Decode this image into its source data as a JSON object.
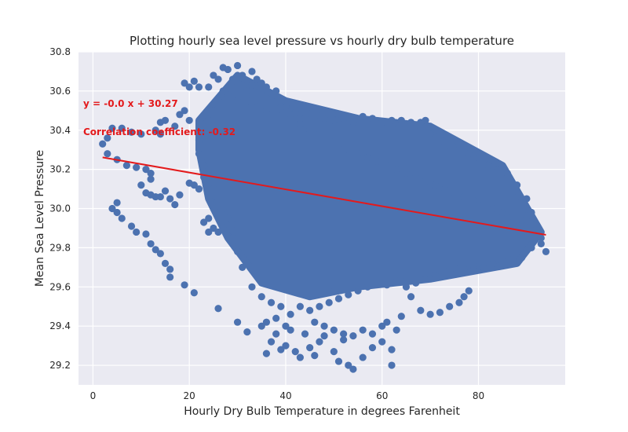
{
  "chart_data": {
    "type": "scatter",
    "title": "Plotting hourly sea level pressure vs hourly dry bulb temperature",
    "xlabel": "Hourly Dry Bulb Temperature in degrees Farenheit",
    "ylabel": "Mean Sea Level Pressure",
    "xlim": [
      -3,
      98
    ],
    "ylim": [
      29.1,
      30.8
    ],
    "xticks": [
      "0",
      "20",
      "40",
      "60",
      "80"
    ],
    "yticks": [
      "29.2",
      "29.4",
      "29.6",
      "29.8",
      "30.0",
      "30.2",
      "30.4",
      "30.6",
      "30.8"
    ],
    "grid": true,
    "background": "#EAEAF2",
    "point_color": "#4C72B0",
    "line_color": "#E31A1C",
    "annotations": {
      "equation": "y = -0.0 x + 30.27",
      "correlation": "Correlation coefficient: -0.32"
    },
    "regression": {
      "slope": -0.0043,
      "intercept": 30.27,
      "x_range": [
        2,
        94
      ]
    },
    "series": [
      {
        "points": [
          [
            2,
            30.33
          ],
          [
            3,
            30.36
          ],
          [
            3,
            30.28
          ],
          [
            4,
            30.41
          ],
          [
            5,
            30.25
          ],
          [
            6,
            30.41
          ],
          [
            7,
            30.22
          ],
          [
            8,
            30.39
          ],
          [
            9,
            30.21
          ],
          [
            10,
            30.38
          ],
          [
            11,
            30.2
          ],
          [
            12,
            30.18
          ],
          [
            13,
            30.4
          ],
          [
            14,
            30.38
          ],
          [
            4,
            30.0
          ],
          [
            5,
            29.98
          ],
          [
            6,
            29.95
          ],
          [
            5,
            30.03
          ],
          [
            8,
            29.91
          ],
          [
            9,
            29.88
          ],
          [
            11,
            29.87
          ],
          [
            12,
            29.82
          ],
          [
            13,
            29.79
          ],
          [
            14,
            29.77
          ],
          [
            15,
            29.72
          ],
          [
            16,
            29.69
          ],
          [
            16,
            29.65
          ],
          [
            19,
            29.61
          ],
          [
            21,
            29.57
          ],
          [
            26,
            29.49
          ],
          [
            10,
            30.12
          ],
          [
            11,
            30.08
          ],
          [
            12,
            30.07
          ],
          [
            13,
            30.06
          ],
          [
            14,
            30.06
          ],
          [
            15,
            30.09
          ],
          [
            16,
            30.05
          ],
          [
            17,
            30.02
          ],
          [
            18,
            30.07
          ],
          [
            12,
            30.15
          ],
          [
            14,
            30.44
          ],
          [
            15,
            30.45
          ],
          [
            17,
            30.42
          ],
          [
            18,
            30.48
          ],
          [
            19,
            30.5
          ],
          [
            20,
            30.45
          ],
          [
            20,
            30.62
          ],
          [
            21,
            30.65
          ],
          [
            22,
            30.62
          ],
          [
            19,
            30.64
          ],
          [
            23,
            29.93
          ],
          [
            24,
            29.95
          ],
          [
            25,
            29.9
          ],
          [
            26,
            29.88
          ],
          [
            27,
            29.9
          ],
          [
            28,
            29.86
          ],
          [
            29,
            29.92
          ],
          [
            24,
            29.88
          ],
          [
            20,
            30.13
          ],
          [
            21,
            30.12
          ],
          [
            22,
            30.1
          ],
          [
            23,
            30.16
          ],
          [
            24,
            30.2
          ],
          [
            30,
            29.42
          ],
          [
            32,
            29.37
          ],
          [
            35,
            29.4
          ],
          [
            36,
            29.26
          ],
          [
            37,
            29.32
          ],
          [
            38,
            29.36
          ],
          [
            39,
            29.28
          ],
          [
            40,
            29.3
          ],
          [
            42,
            29.27
          ],
          [
            43,
            29.24
          ],
          [
            45,
            29.29
          ],
          [
            46,
            29.25
          ],
          [
            48,
            29.35
          ],
          [
            50,
            29.27
          ],
          [
            51,
            29.22
          ],
          [
            53,
            29.2
          ],
          [
            54,
            29.18
          ],
          [
            56,
            29.24
          ],
          [
            58,
            29.29
          ],
          [
            60,
            29.32
          ],
          [
            62,
            29.28
          ],
          [
            62,
            29.2
          ],
          [
            61,
            29.42
          ],
          [
            63,
            29.38
          ],
          [
            64,
            29.45
          ],
          [
            44,
            29.36
          ],
          [
            47,
            29.32
          ],
          [
            52,
            29.33
          ],
          [
            68,
            29.48
          ],
          [
            70,
            29.46
          ],
          [
            72,
            29.47
          ],
          [
            74,
            29.5
          ],
          [
            76,
            29.52
          ],
          [
            77,
            29.55
          ],
          [
            78,
            29.58
          ],
          [
            66,
            29.55
          ],
          [
            27,
            30.72
          ],
          [
            28,
            30.71
          ],
          [
            30,
            30.73
          ],
          [
            31,
            30.68
          ],
          [
            33,
            30.7
          ],
          [
            34,
            30.66
          ],
          [
            35,
            30.64
          ],
          [
            36,
            30.62
          ],
          [
            38,
            30.6
          ],
          [
            29,
            30.66
          ],
          [
            25,
            30.68
          ],
          [
            26,
            30.66
          ],
          [
            24,
            30.62
          ],
          [
            28,
            30.58
          ],
          [
            30,
            30.55
          ],
          [
            32,
            30.55
          ],
          [
            34,
            30.52
          ],
          [
            36,
            30.5
          ],
          [
            38,
            30.5
          ],
          [
            40,
            30.52
          ],
          [
            42,
            30.49
          ],
          [
            44,
            30.46
          ],
          [
            46,
            30.47
          ],
          [
            48,
            30.46
          ],
          [
            50,
            30.45
          ],
          [
            52,
            30.46
          ],
          [
            54,
            30.44
          ],
          [
            56,
            30.47
          ],
          [
            58,
            30.46
          ],
          [
            60,
            30.44
          ],
          [
            62,
            30.45
          ],
          [
            64,
            30.45
          ],
          [
            66,
            30.44
          ],
          [
            68,
            30.44
          ],
          [
            69,
            30.45
          ],
          [
            70,
            30.38
          ],
          [
            72,
            30.34
          ],
          [
            74,
            30.32
          ],
          [
            76,
            30.3
          ],
          [
            78,
            30.28
          ],
          [
            80,
            30.26
          ],
          [
            82,
            30.22
          ],
          [
            84,
            30.2
          ],
          [
            86,
            30.18
          ],
          [
            88,
            30.12
          ],
          [
            90,
            30.05
          ],
          [
            91,
            29.98
          ],
          [
            92,
            29.9
          ],
          [
            93,
            29.85
          ],
          [
            94,
            29.78
          ],
          [
            93,
            29.82
          ],
          [
            91,
            29.8
          ],
          [
            89,
            29.75
          ],
          [
            87,
            29.74
          ],
          [
            85,
            29.73
          ],
          [
            83,
            29.72
          ],
          [
            81,
            29.7
          ],
          [
            79,
            29.71
          ],
          [
            77,
            29.69
          ],
          [
            75,
            29.7
          ],
          [
            73,
            29.68
          ],
          [
            71,
            29.66
          ],
          [
            69,
            29.64
          ],
          [
            67,
            29.62
          ],
          [
            65,
            29.6
          ],
          [
            63,
            29.63
          ],
          [
            61,
            29.61
          ],
          [
            59,
            29.62
          ],
          [
            57,
            29.6
          ],
          [
            55,
            29.58
          ],
          [
            53,
            29.56
          ],
          [
            51,
            29.54
          ],
          [
            49,
            29.52
          ],
          [
            47,
            29.5
          ],
          [
            45,
            29.48
          ],
          [
            43,
            29.5
          ],
          [
            41,
            29.46
          ],
          [
            39,
            29.5
          ],
          [
            37,
            29.52
          ],
          [
            35,
            29.55
          ],
          [
            33,
            29.6
          ],
          [
            31,
            29.7
          ],
          [
            30,
            29.78
          ],
          [
            29,
            29.85
          ],
          [
            28,
            29.95
          ],
          [
            27,
            30.0
          ],
          [
            26,
            30.05
          ],
          [
            25,
            30.1
          ],
          [
            24,
            30.15
          ],
          [
            23,
            30.22
          ],
          [
            22,
            30.28
          ],
          [
            22,
            30.35
          ],
          [
            23,
            30.4
          ],
          [
            24,
            30.45
          ],
          [
            25,
            30.5
          ],
          [
            26,
            30.55
          ],
          [
            27,
            30.6
          ],
          [
            32,
            30.6
          ],
          [
            33,
            30.63
          ],
          [
            35,
            30.58
          ],
          [
            37,
            30.55
          ],
          [
            39,
            30.52
          ],
          [
            41,
            30.48
          ],
          [
            43,
            30.43
          ],
          [
            45,
            30.4
          ],
          [
            47,
            30.38
          ],
          [
            49,
            30.35
          ],
          [
            51,
            30.33
          ],
          [
            53,
            30.3
          ],
          [
            55,
            30.28
          ],
          [
            57,
            30.26
          ],
          [
            59,
            30.24
          ],
          [
            61,
            30.22
          ],
          [
            63,
            30.2
          ],
          [
            65,
            30.18
          ],
          [
            67,
            30.16
          ],
          [
            69,
            30.14
          ],
          [
            71,
            30.12
          ],
          [
            73,
            30.1
          ],
          [
            75,
            30.08
          ],
          [
            77,
            30.06
          ],
          [
            79,
            30.04
          ],
          [
            81,
            30.02
          ],
          [
            83,
            30.0
          ],
          [
            85,
            29.98
          ],
          [
            87,
            29.96
          ],
          [
            89,
            29.94
          ],
          [
            91,
            29.92
          ],
          [
            36,
            29.42
          ],
          [
            38,
            29.44
          ],
          [
            40,
            29.4
          ],
          [
            41,
            29.38
          ],
          [
            46,
            29.42
          ],
          [
            48,
            29.4
          ],
          [
            50,
            29.38
          ],
          [
            52,
            29.36
          ],
          [
            54,
            29.35
          ],
          [
            56,
            29.38
          ],
          [
            58,
            29.36
          ],
          [
            60,
            29.4
          ]
        ]
      }
    ]
  }
}
